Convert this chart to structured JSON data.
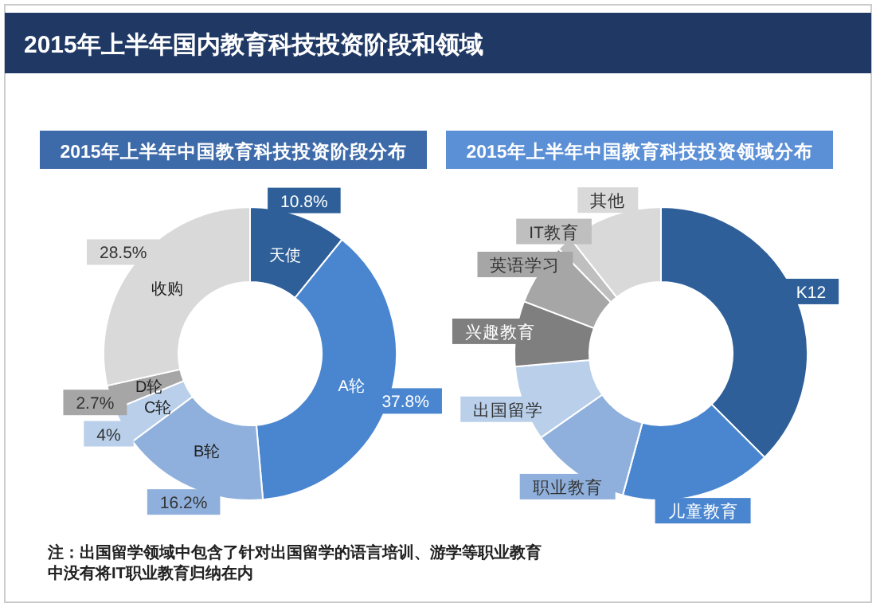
{
  "chart_data": [
    {
      "type": "other",
      "title": "2015年上半年国内教育科技投资阶段和领域",
      "annotations": [
        "注：出国留学领域中包含了针对出国留学的语言培训、游学等职业教育中没有将IT职业教育归纳在内"
      ]
    },
    {
      "type": "donut",
      "title": "2015年上半年中国教育科技投资阶段分布",
      "categories": [
        "天使",
        "A轮",
        "B轮",
        "C轮",
        "D轮",
        "收购"
      ],
      "values": [
        10.8,
        37.8,
        16.2,
        4,
        2.7,
        28.5
      ],
      "colors": [
        "#2e5f99",
        "#4a86d0",
        "#8fb0dc",
        "#b9cfea",
        "#a6a6a6",
        "#d9d9d9"
      ],
      "value_labels": [
        "10.8%",
        "37.8%",
        "16.2%",
        "4%",
        "2.7%",
        "28.5%"
      ]
    },
    {
      "type": "donut",
      "title": "2015年上半年中国教育科技投资领域分布",
      "categories": [
        "K12",
        "儿童教育",
        "职业教育",
        "出国留学",
        "兴趣教育",
        "英语学习",
        "IT教育",
        "其他"
      ],
      "values": [
        37.5,
        16.7,
        11.1,
        8.3,
        7.2,
        6.9,
        1.7,
        10.6
      ],
      "colors": [
        "#2e5f99",
        "#4a86d0",
        "#8fb0dc",
        "#b9cfea",
        "#7f7f7f",
        "#a6a6a6",
        "#bfbfbf",
        "#d9d9d9"
      ]
    }
  ]
}
